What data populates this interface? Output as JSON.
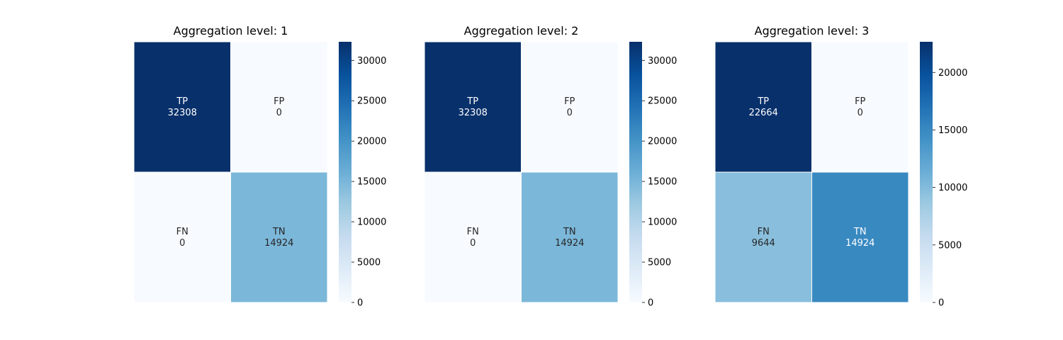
{
  "chart_data": [
    {
      "type": "heatmap",
      "title": "Aggregation level: 1",
      "cells": [
        [
          {
            "label": "TP",
            "value": 32308
          },
          {
            "label": "FP",
            "value": 0
          }
        ],
        [
          {
            "label": "FN",
            "value": 0
          },
          {
            "label": "TN",
            "value": 14924
          }
        ]
      ],
      "colorbar": {
        "range": [
          0,
          32308
        ],
        "ticks": [
          0,
          5000,
          10000,
          15000,
          20000,
          25000,
          30000
        ],
        "colormap": "Blues"
      }
    },
    {
      "type": "heatmap",
      "title": "Aggregation level: 2",
      "cells": [
        [
          {
            "label": "TP",
            "value": 32308
          },
          {
            "label": "FP",
            "value": 0
          }
        ],
        [
          {
            "label": "FN",
            "value": 0
          },
          {
            "label": "TN",
            "value": 14924
          }
        ]
      ],
      "colorbar": {
        "range": [
          0,
          32308
        ],
        "ticks": [
          0,
          5000,
          10000,
          15000,
          20000,
          25000,
          30000
        ],
        "colormap": "Blues"
      }
    },
    {
      "type": "heatmap",
      "title": "Aggregation level: 3",
      "cells": [
        [
          {
            "label": "TP",
            "value": 22664
          },
          {
            "label": "FP",
            "value": 0
          }
        ],
        [
          {
            "label": "FN",
            "value": 9644
          },
          {
            "label": "TN",
            "value": 14924
          }
        ]
      ],
      "colorbar": {
        "range": [
          0,
          22664
        ],
        "ticks": [
          0,
          5000,
          10000,
          15000,
          20000
        ],
        "colormap": "Blues"
      }
    }
  ]
}
